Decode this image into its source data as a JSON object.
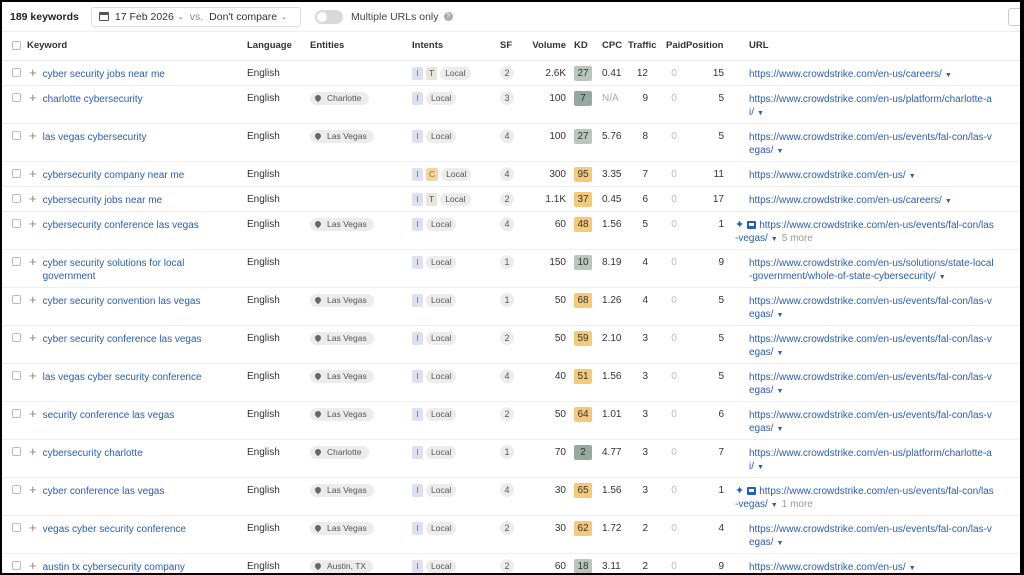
{
  "toolbar": {
    "keyword_count": "189 keywords",
    "date": "17 Feb 2026",
    "vs_label": "vs.",
    "compare": "Don't compare",
    "toggle_label": "Multiple URLs only",
    "help_glyph": "?"
  },
  "columns": {
    "keyword": "Keyword",
    "language": "Language",
    "entities": "Entities",
    "intents": "Intents",
    "sf": "SF",
    "volume": "Volume",
    "kd": "KD",
    "cpc": "CPC",
    "traffic": "Traffic",
    "paid": "Paid",
    "position": "Position",
    "url": "URL"
  },
  "kd_colors": {
    "low": "#b9c6bd",
    "very_low": "#95aa9f",
    "mid": "#f3c97a"
  },
  "rows": [
    {
      "keyword": "cyber security jobs near me",
      "language": "English",
      "entity": "",
      "intents": [
        "I",
        "T",
        "Local"
      ],
      "sf": "2",
      "volume": "2.6K",
      "kd": "27",
      "kd_color": "#b9c6bd",
      "cpc": "0.41",
      "traffic": "12",
      "paid": "0",
      "position": "15",
      "url": "https://www.crowdstrike.com/en-us/careers/",
      "more": "",
      "featured": false,
      "tall": false
    },
    {
      "keyword": "charlotte cybersecurity",
      "language": "English",
      "entity": "Charlotte",
      "intents": [
        "I",
        "Local"
      ],
      "sf": "3",
      "volume": "100",
      "kd": "7",
      "kd_color": "#95aa9f",
      "cpc": "N/A",
      "traffic": "9",
      "paid": "0",
      "position": "5",
      "url": "https://www.crowdstrike.com/en-us/platform/charlotte-ai/",
      "more": "",
      "featured": false,
      "tall": true
    },
    {
      "keyword": "las vegas cybersecurity",
      "language": "English",
      "entity": "Las Vegas",
      "intents": [
        "I",
        "Local"
      ],
      "sf": "4",
      "volume": "100",
      "kd": "27",
      "kd_color": "#b9c6bd",
      "cpc": "5.76",
      "traffic": "8",
      "paid": "0",
      "position": "5",
      "url": "https://www.crowdstrike.com/en-us/events/fal-con/las-vegas/",
      "more": "",
      "featured": false,
      "tall": true
    },
    {
      "keyword": "cybersecurity company near me",
      "language": "English",
      "entity": "",
      "intents": [
        "I",
        "C",
        "Local"
      ],
      "sf": "4",
      "volume": "300",
      "kd": "95",
      "kd_color": "#f3c97a",
      "cpc": "3.35",
      "traffic": "7",
      "paid": "0",
      "position": "11",
      "url": "https://www.crowdstrike.com/en-us/",
      "more": "",
      "featured": false,
      "tall": false
    },
    {
      "keyword": "cybersecurity jobs near me",
      "language": "English",
      "entity": "",
      "intents": [
        "I",
        "T",
        "Local"
      ],
      "sf": "2",
      "volume": "1.1K",
      "kd": "37",
      "kd_color": "#f3c97a",
      "cpc": "0.45",
      "traffic": "6",
      "paid": "0",
      "position": "17",
      "url": "https://www.crowdstrike.com/en-us/careers/",
      "more": "",
      "featured": false,
      "tall": false
    },
    {
      "keyword": "cybersecurity conference las vegas",
      "language": "English",
      "entity": "Las Vegas",
      "intents": [
        "I",
        "Local"
      ],
      "sf": "4",
      "volume": "60",
      "kd": "48",
      "kd_color": "#f3c97a",
      "cpc": "1.56",
      "traffic": "5",
      "paid": "0",
      "position": "1",
      "url": "https://www.crowdstrike.com/en-us/events/fal-con/las-vegas/",
      "more": "5 more",
      "featured": true,
      "tall": true
    },
    {
      "keyword": "cyber security solutions for local government",
      "language": "English",
      "entity": "",
      "intents": [
        "I",
        "Local"
      ],
      "sf": "1",
      "volume": "150",
      "kd": "10",
      "kd_color": "#b9c6bd",
      "cpc": "8.19",
      "traffic": "4",
      "paid": "0",
      "position": "9",
      "url": "https://www.crowdstrike.com/en-us/solutions/state-local-government/whole-of-state-cybersecurity/",
      "more": "",
      "featured": false,
      "tall": true
    },
    {
      "keyword": "cyber security convention las vegas",
      "language": "English",
      "entity": "Las Vegas",
      "intents": [
        "I",
        "Local"
      ],
      "sf": "1",
      "volume": "50",
      "kd": "68",
      "kd_color": "#f3c97a",
      "cpc": "1.26",
      "traffic": "4",
      "paid": "0",
      "position": "5",
      "url": "https://www.crowdstrike.com/en-us/events/fal-con/las-vegas/",
      "more": "",
      "featured": false,
      "tall": true
    },
    {
      "keyword": "cyber security conference las vegas",
      "language": "English",
      "entity": "Las Vegas",
      "intents": [
        "I",
        "Local"
      ],
      "sf": "2",
      "volume": "50",
      "kd": "59",
      "kd_color": "#f3c97a",
      "cpc": "2.10",
      "traffic": "3",
      "paid": "0",
      "position": "5",
      "url": "https://www.crowdstrike.com/en-us/events/fal-con/las-vegas/",
      "more": "",
      "featured": false,
      "tall": true
    },
    {
      "keyword": "las vegas cyber security conference",
      "language": "English",
      "entity": "Las Vegas",
      "intents": [
        "I",
        "Local"
      ],
      "sf": "4",
      "volume": "40",
      "kd": "51",
      "kd_color": "#f3c97a",
      "cpc": "1.56",
      "traffic": "3",
      "paid": "0",
      "position": "5",
      "url": "https://www.crowdstrike.com/en-us/events/fal-con/las-vegas/",
      "more": "",
      "featured": false,
      "tall": true
    },
    {
      "keyword": "security conference las vegas",
      "language": "English",
      "entity": "Las Vegas",
      "intents": [
        "I",
        "Local"
      ],
      "sf": "2",
      "volume": "50",
      "kd": "64",
      "kd_color": "#f3c97a",
      "cpc": "1.01",
      "traffic": "3",
      "paid": "0",
      "position": "6",
      "url": "https://www.crowdstrike.com/en-us/events/fal-con/las-vegas/",
      "more": "",
      "featured": false,
      "tall": true
    },
    {
      "keyword": "cybersecurity charlotte",
      "language": "English",
      "entity": "Charlotte",
      "intents": [
        "I",
        "Local"
      ],
      "sf": "1",
      "volume": "70",
      "kd": "2",
      "kd_color": "#95aa9f",
      "cpc": "4.77",
      "traffic": "3",
      "paid": "0",
      "position": "7",
      "url": "https://www.crowdstrike.com/en-us/platform/charlotte-ai/",
      "more": "",
      "featured": false,
      "tall": true
    },
    {
      "keyword": "cyber conference las vegas",
      "language": "English",
      "entity": "Las Vegas",
      "intents": [
        "I",
        "Local"
      ],
      "sf": "4",
      "volume": "30",
      "kd": "65",
      "kd_color": "#f3c97a",
      "cpc": "1.56",
      "traffic": "3",
      "paid": "0",
      "position": "1",
      "url": "https://www.crowdstrike.com/en-us/events/fal-con/las-vegas/",
      "more": "1 more",
      "featured": true,
      "tall": true
    },
    {
      "keyword": "vegas cyber security conference",
      "language": "English",
      "entity": "Las Vegas",
      "intents": [
        "I",
        "Local"
      ],
      "sf": "2",
      "volume": "30",
      "kd": "62",
      "kd_color": "#f3c97a",
      "cpc": "1.72",
      "traffic": "2",
      "paid": "0",
      "position": "4",
      "url": "https://www.crowdstrike.com/en-us/events/fal-con/las-vegas/",
      "more": "",
      "featured": false,
      "tall": true
    },
    {
      "keyword": "austin tx cybersecurity company",
      "language": "English",
      "entity": "Austin, TX",
      "intents": [
        "I",
        "Local"
      ],
      "sf": "2",
      "volume": "60",
      "kd": "18",
      "kd_color": "#b9c6bd",
      "cpc": "3.11",
      "traffic": "2",
      "paid": "0",
      "position": "9",
      "url": "https://www.crowdstrike.com/en-us/",
      "more": "",
      "featured": false,
      "tall": false
    }
  ]
}
